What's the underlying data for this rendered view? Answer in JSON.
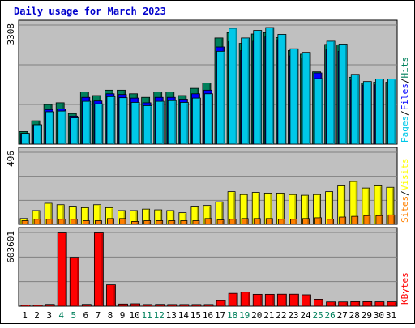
{
  "chart_data": {
    "type": "bar",
    "title": "Daily usage for March 2023",
    "categories": [
      "1",
      "2",
      "3",
      "4",
      "5",
      "6",
      "7",
      "8",
      "9",
      "10",
      "11",
      "12",
      "13",
      "14",
      "15",
      "16",
      "17",
      "18",
      "19",
      "20",
      "21",
      "22",
      "23",
      "24",
      "25",
      "26",
      "27",
      "28",
      "29",
      "30",
      "31"
    ],
    "weekend_days": [
      "4",
      "5",
      "11",
      "12",
      "18",
      "19",
      "25",
      "26"
    ],
    "colors": {
      "title": "#0000cc",
      "panel_bg": "#c0c0c0",
      "hits": "#00805c",
      "files": "#0000ff",
      "pages": "#00c8e8",
      "visits": "#ffff00",
      "sites": "#ff8000",
      "kbytes": "#ff0000",
      "weekend_label": "#00805c",
      "weekday_label": "#000000"
    },
    "panels": [
      {
        "id": "top",
        "ymax": 3308,
        "ymax_label": "3308",
        "legend": [
          "Pages",
          "Files",
          "Hits"
        ],
        "series": [
          {
            "name": "Hits",
            "values": [
              350,
              650,
              1100,
              1150,
              850,
              1450,
              1350,
              1500,
              1500,
              1400,
              1300,
              1450,
              1450,
              1350,
              1550,
              1700,
              2950,
              3100,
              2800,
              3060,
              3100,
              2960,
              2600,
              2500,
              2010,
              2770,
              2760,
              1860,
              1690,
              1720,
              1720
            ]
          },
          {
            "name": "Files",
            "values": [
              300,
              540,
              960,
              980,
              780,
              1300,
              1200,
              1400,
              1380,
              1280,
              1150,
              1300,
              1300,
              1250,
              1400,
              1500,
              2700,
              2850,
              2600,
              2860,
              2980,
              2900,
              2450,
              2400,
              1980,
              2620,
              2580,
              1780,
              1640,
              1650,
              1640
            ]
          },
          {
            "name": "Pages",
            "values": [
              300,
              540,
              900,
              920,
              730,
              1190,
              1120,
              1320,
              1290,
              1160,
              1070,
              1190,
              1210,
              1160,
              1280,
              1400,
              2580,
              3220,
              2950,
              3160,
              3240,
              3050,
              2650,
              2550,
              1820,
              2860,
              2780,
              1940,
              1740,
              1810,
              1810
            ]
          }
        ]
      },
      {
        "id": "middle",
        "ymax": 496,
        "ymax_label": "496",
        "legend": [
          "Sites",
          "Visits"
        ],
        "series": [
          {
            "name": "Visits",
            "values": [
              40,
              95,
              145,
              135,
              125,
              115,
              135,
              115,
              95,
              95,
              105,
              100,
              95,
              80,
              125,
              130,
              155,
              225,
              205,
              220,
              215,
              215,
              205,
              200,
              205,
              225,
              265,
              295,
              250,
              265,
              255
            ]
          },
          {
            "name": "Sites",
            "values": [
              25,
              35,
              35,
              35,
              35,
              25,
              25,
              40,
              40,
              20,
              25,
              25,
              25,
              25,
              25,
              40,
              30,
              35,
              40,
              40,
              40,
              35,
              35,
              40,
              45,
              35,
              50,
              55,
              60,
              60,
              65
            ]
          }
        ]
      },
      {
        "id": "bottom",
        "ymax": 603601,
        "ymax_label": "603601",
        "legend": [
          "KBytes"
        ],
        "series": [
          {
            "name": "KBytes",
            "values": [
              10000,
              10000,
              15000,
              600000,
              400000,
              15000,
              600000,
              175000,
              18000,
              20000,
              14000,
              15000,
              14000,
              14000,
              14000,
              14000,
              45000,
              105000,
              115000,
              97000,
              97000,
              98000,
              98000,
              93000,
              57000,
              35000,
              35000,
              37000,
              37000,
              36000,
              36000
            ]
          }
        ]
      }
    ]
  }
}
